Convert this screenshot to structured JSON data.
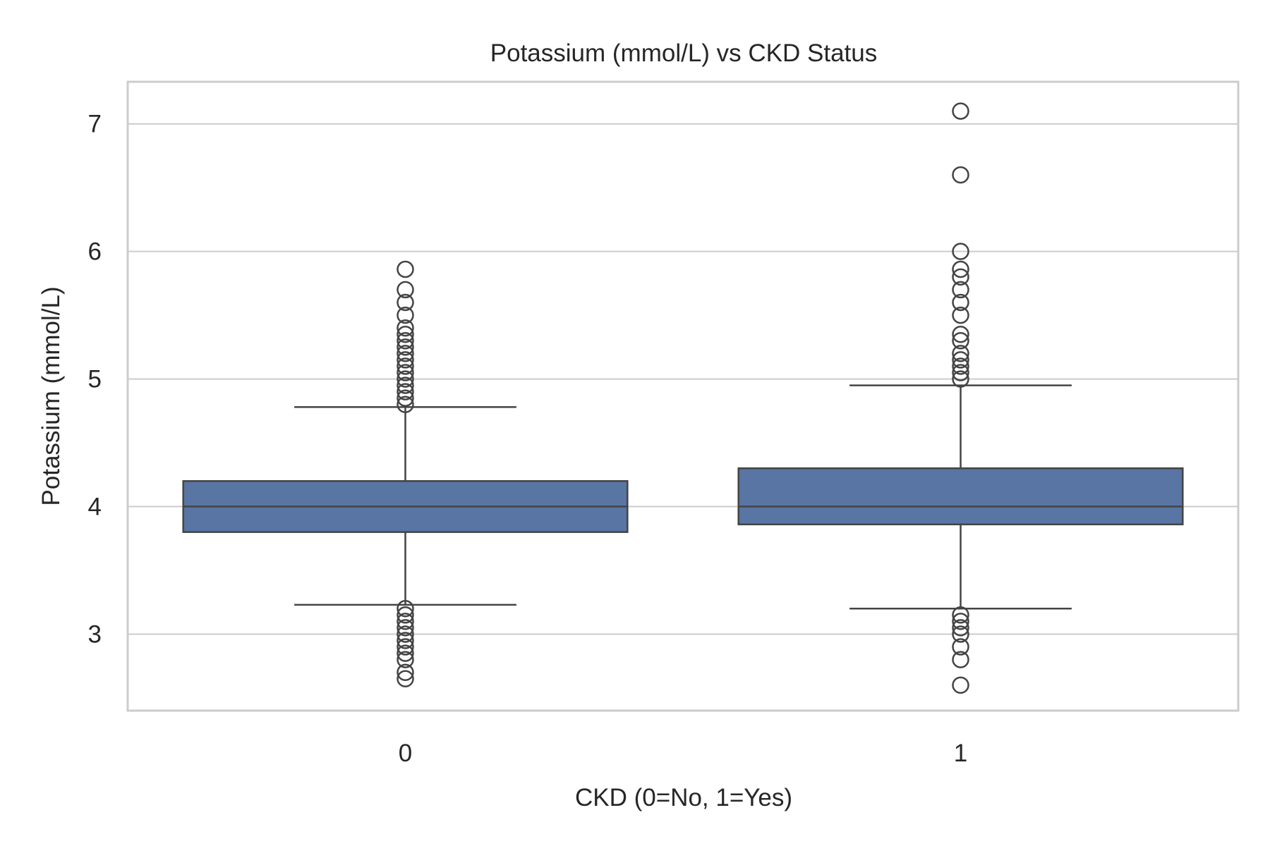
{
  "chart_data": {
    "type": "box",
    "title": "Potassium (mmol/L) vs CKD Status",
    "xlabel": "CKD (0=No, 1=Yes)",
    "ylabel": "Potassium (mmol/L)",
    "categories": [
      "0",
      "1"
    ],
    "ylim": [
      2.4,
      7.33
    ],
    "yticks": [
      3,
      4,
      5,
      6,
      7
    ],
    "grid": "horizontal",
    "box_color": "#5875a4",
    "line_color": "#444444",
    "boxes": [
      {
        "category": "0",
        "q1": 3.8,
        "median": 4.0,
        "q3": 4.2,
        "whisker_low": 3.23,
        "whisker_high": 4.78,
        "fliers": [
          4.8,
          4.85,
          4.9,
          4.95,
          5.0,
          5.05,
          5.1,
          5.15,
          5.2,
          5.25,
          5.3,
          5.35,
          5.4,
          5.5,
          5.6,
          5.7,
          5.86,
          3.2,
          3.15,
          3.1,
          3.05,
          3.0,
          2.95,
          2.9,
          2.85,
          2.8,
          2.7,
          2.65
        ]
      },
      {
        "category": "1",
        "q1": 3.86,
        "median": 4.0,
        "q3": 4.3,
        "whisker_low": 3.2,
        "whisker_high": 4.95,
        "fliers": [
          5.0,
          5.05,
          5.1,
          5.15,
          5.2,
          5.3,
          5.35,
          5.5,
          5.6,
          5.7,
          5.8,
          5.86,
          6.0,
          6.6,
          7.1,
          3.15,
          3.1,
          3.05,
          3.0,
          2.9,
          2.8,
          2.6
        ]
      }
    ]
  }
}
